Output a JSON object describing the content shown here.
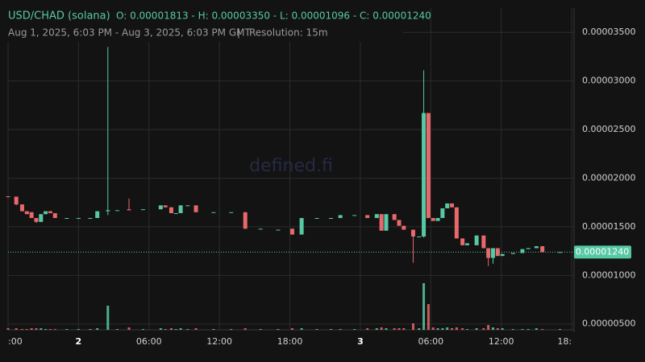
{
  "header": {
    "title": "USD/CHAD (solana)",
    "ohlc_text": "O: 0.00001813 - H: 0.00003350 - L: 0.00001096 - C: 0.00001240",
    "range_text": "Aug 1, 2025, 6:03 PM - Aug 3, 2025, 6:03 PM GMT",
    "separator": "|",
    "resolution": "Resolution: 15m",
    "watermark": "defined.fi"
  },
  "chart_data": {
    "type": "candlestick",
    "up_color": "#56c9a4",
    "down_color": "#e8686b",
    "grid": true,
    "xlim": [
      18,
      66.2
    ],
    "ylim": [
      4.4e-06,
      3.75e-05
    ],
    "xticks": [
      {
        "value": 18,
        "label": ":00"
      },
      {
        "value": 24,
        "label": "2"
      },
      {
        "value": 30,
        "label": "06:00"
      },
      {
        "value": 36,
        "label": "12:00"
      },
      {
        "value": 42,
        "label": "18:00"
      },
      {
        "value": 48,
        "label": "3"
      },
      {
        "value": 54,
        "label": "06:00"
      },
      {
        "value": 60,
        "label": "12:00"
      },
      {
        "value": 66,
        "label": "18:"
      }
    ],
    "yticks": [
      {
        "value": 3.5e-05,
        "label": "0.00003500"
      },
      {
        "value": 3e-05,
        "label": "0.00003000"
      },
      {
        "value": 2.5e-05,
        "label": "0.00002500"
      },
      {
        "value": 2e-05,
        "label": "0.00002000"
      },
      {
        "value": 1.5e-05,
        "label": "0.00001500"
      },
      {
        "value": 1e-05,
        "label": "0.00001000"
      },
      {
        "value": 5e-06,
        "label": "0.00000500"
      }
    ],
    "last_price": {
      "value": 1.24e-05,
      "label": "0.00001240"
    },
    "x": [
      18.0,
      18.7,
      19.2,
      19.6,
      20.0,
      20.4,
      20.8,
      21.2,
      21.6,
      22.0,
      23.0,
      24.0,
      25.0,
      25.6,
      26.5,
      27.3,
      28.3,
      29.5,
      31.0,
      31.4,
      31.9,
      32.3,
      32.7,
      33.3,
      34.0,
      35.5,
      37.0,
      38.2,
      39.5,
      41.0,
      42.2,
      43.0,
      44.3,
      45.5,
      46.3,
      47.5,
      48.6,
      49.4,
      49.8,
      50.2,
      50.9,
      51.3,
      51.7,
      52.5,
      53.0,
      53.4,
      53.8,
      54.2,
      54.6,
      55.0,
      55.4,
      55.8,
      56.2,
      56.7,
      57.1,
      57.9,
      58.5,
      58.9,
      59.3,
      59.7,
      60.1,
      61.0,
      61.8,
      62.3,
      63.0,
      63.5,
      65.0
    ],
    "open": [
      1.813e-05,
      1.81e-05,
      1.73e-05,
      1.66e-05,
      1.65e-05,
      1.59e-05,
      1.55e-05,
      1.63e-05,
      1.66e-05,
      1.64e-05,
      1.59e-05,
      1.59e-05,
      1.59e-05,
      1.59e-05,
      1.66e-05,
      1.67e-05,
      1.68e-05,
      1.68e-05,
      1.68e-05,
      1.72e-05,
      1.7e-05,
      1.64e-05,
      1.64e-05,
      1.72e-05,
      1.72e-05,
      1.65e-05,
      1.65e-05,
      1.65e-05,
      1.48e-05,
      1.47e-05,
      1.48e-05,
      1.42e-05,
      1.59e-05,
      1.59e-05,
      1.59e-05,
      1.62e-05,
      1.62e-05,
      1.59e-05,
      1.63e-05,
      1.46e-05,
      1.63e-05,
      1.57e-05,
      1.51e-05,
      1.47e-05,
      1.4e-05,
      1.4e-05,
      2.67e-05,
      1.59e-05,
      1.56e-05,
      1.59e-05,
      1.69e-05,
      1.74e-05,
      1.7e-05,
      1.38e-05,
      1.31e-05,
      1.31e-05,
      1.41e-05,
      1.28e-05,
      1.18e-05,
      1.28e-05,
      1.2e-05,
      1.22e-05,
      1.23e-05,
      1.27e-05,
      1.28e-05,
      1.3e-05,
      1.24e-05
    ],
    "high": [
      1.813e-05,
      1.81e-05,
      1.73e-05,
      1.66e-05,
      1.65e-05,
      1.59e-05,
      1.63e-05,
      1.66e-05,
      1.66e-05,
      1.64e-05,
      1.59e-05,
      1.59e-05,
      1.59e-05,
      1.66e-05,
      3.35e-05,
      1.67e-05,
      1.79e-05,
      1.68e-05,
      1.72e-05,
      1.72e-05,
      1.7e-05,
      1.64e-05,
      1.72e-05,
      1.72e-05,
      1.72e-05,
      1.65e-05,
      1.65e-05,
      1.65e-05,
      1.48e-05,
      1.47e-05,
      1.48e-05,
      1.59e-05,
      1.59e-05,
      1.59e-05,
      1.62e-05,
      1.62e-05,
      1.62e-05,
      1.63e-05,
      1.63e-05,
      1.63e-05,
      1.63e-05,
      1.57e-05,
      1.51e-05,
      1.47e-05,
      1.4e-05,
      3.11e-05,
      2.67e-05,
      1.59e-05,
      1.59e-05,
      1.69e-05,
      1.74e-05,
      1.74e-05,
      1.7e-05,
      1.38e-05,
      1.33e-05,
      1.41e-05,
      1.41e-05,
      1.28e-05,
      1.28e-05,
      1.28e-05,
      1.22e-05,
      1.23e-05,
      1.27e-05,
      1.28e-05,
      1.3e-05,
      1.3e-05,
      1.24e-05
    ],
    "low": [
      1.8e-05,
      1.72e-05,
      1.66e-05,
      1.63e-05,
      1.59e-05,
      1.54e-05,
      1.55e-05,
      1.63e-05,
      1.64e-05,
      1.59e-05,
      1.59e-05,
      1.59e-05,
      1.59e-05,
      1.59e-05,
      1.62e-05,
      1.67e-05,
      1.67e-05,
      1.68e-05,
      1.68e-05,
      1.7e-05,
      1.64e-05,
      1.64e-05,
      1.64e-05,
      1.72e-05,
      1.65e-05,
      1.65e-05,
      1.65e-05,
      1.48e-05,
      1.48e-05,
      1.47e-05,
      1.42e-05,
      1.42e-05,
      1.59e-05,
      1.59e-05,
      1.59e-05,
      1.62e-05,
      1.59e-05,
      1.59e-05,
      1.46e-05,
      1.46e-05,
      1.57e-05,
      1.51e-05,
      1.47e-05,
      1.13e-05,
      1.4e-05,
      1.39e-05,
      1.59e-05,
      1.56e-05,
      1.56e-05,
      1.59e-05,
      1.69e-05,
      1.7e-05,
      1.38e-05,
      1.31e-05,
      1.31e-05,
      1.31e-05,
      1.28e-05,
      1.096e-05,
      1.12e-05,
      1.2e-05,
      1.2e-05,
      1.22e-05,
      1.23e-05,
      1.27e-05,
      1.28e-05,
      1.24e-05,
      1.24e-05
    ],
    "close": [
      1.81e-05,
      1.73e-05,
      1.66e-05,
      1.63e-05,
      1.59e-05,
      1.55e-05,
      1.63e-05,
      1.66e-05,
      1.64e-05,
      1.59e-05,
      1.59e-05,
      1.59e-05,
      1.59e-05,
      1.66e-05,
      1.67e-05,
      1.67e-05,
      1.67e-05,
      1.68e-05,
      1.72e-05,
      1.7e-05,
      1.64e-05,
      1.64e-05,
      1.72e-05,
      1.72e-05,
      1.65e-05,
      1.65e-05,
      1.65e-05,
      1.48e-05,
      1.48e-05,
      1.47e-05,
      1.42e-05,
      1.59e-05,
      1.59e-05,
      1.59e-05,
      1.62e-05,
      1.62e-05,
      1.59e-05,
      1.63e-05,
      1.46e-05,
      1.63e-05,
      1.57e-05,
      1.51e-05,
      1.47e-05,
      1.4e-05,
      1.4e-05,
      2.67e-05,
      1.59e-05,
      1.56e-05,
      1.59e-05,
      1.69e-05,
      1.74e-05,
      1.7e-05,
      1.38e-05,
      1.31e-05,
      1.33e-05,
      1.41e-05,
      1.28e-05,
      1.18e-05,
      1.28e-05,
      1.2e-05,
      1.22e-05,
      1.23e-05,
      1.27e-05,
      1.28e-05,
      1.3e-05,
      1.24e-05,
      1.24e-05
    ],
    "volume": [
      2,
      2,
      1,
      1,
      2,
      2,
      2,
      1,
      1,
      1,
      1,
      1,
      1,
      2,
      30,
      1,
      3,
      1,
      2,
      1,
      2,
      1,
      2,
      1,
      2,
      1,
      1,
      2,
      1,
      1,
      2,
      2,
      1,
      1,
      1,
      1,
      2,
      2,
      3,
      2,
      2,
      2,
      2,
      8,
      2,
      58,
      32,
      3,
      2,
      2,
      3,
      2,
      3,
      2,
      1,
      2,
      2,
      6,
      3,
      2,
      2,
      1,
      1,
      1,
      2,
      1,
      1
    ]
  }
}
